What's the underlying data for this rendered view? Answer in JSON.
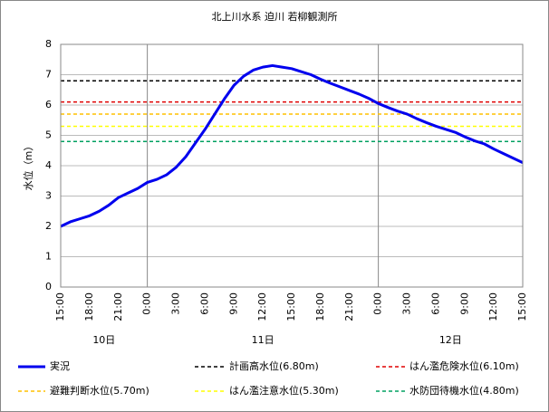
{
  "chart_data": {
    "type": "line",
    "title": "北上川水系 迫川 若柳観測所",
    "y_label": "水位（m）",
    "categories": [
      "15:00",
      null,
      null,
      "18:00",
      null,
      null,
      "21:00",
      null,
      null,
      "0:00",
      null,
      null,
      "3:00",
      null,
      null,
      "6:00",
      null,
      null,
      "9:00",
      null,
      null,
      "12:00",
      null,
      null,
      "15:00",
      null,
      null,
      "18:00",
      null,
      null,
      "21:00",
      null,
      null,
      "0:00",
      null,
      null,
      "3:00",
      null,
      null,
      "6:00",
      null,
      null,
      "9:00",
      null,
      null,
      "12:00",
      null,
      null,
      "15:00"
    ],
    "days": [
      "10日",
      "11日",
      "12日"
    ],
    "series": [
      {
        "name": "実況",
        "color": "#0000ee",
        "values": [
          2.0,
          2.15,
          2.25,
          2.35,
          2.5,
          2.7,
          2.95,
          3.1,
          3.25,
          3.45,
          3.55,
          3.7,
          3.95,
          4.3,
          4.75,
          5.2,
          5.7,
          6.2,
          6.65,
          6.95,
          7.15,
          7.25,
          7.3,
          7.25,
          7.2,
          7.1,
          7.0,
          6.85,
          6.72,
          6.6,
          6.48,
          6.36,
          6.22,
          6.05,
          5.92,
          5.8,
          5.7,
          5.55,
          5.42,
          5.3,
          5.2,
          5.1,
          4.95,
          4.82,
          4.72,
          4.55,
          4.4,
          4.25,
          4.1
        ]
      }
    ],
    "reference_lines": [
      {
        "name": "計画高水位(6.80m)",
        "value": 6.8,
        "color": "#000000"
      },
      {
        "name": "はん濫危険水位(6.10m)",
        "value": 6.1,
        "color": "#e00000"
      },
      {
        "name": "避難判断水位(5.70m)",
        "value": 5.7,
        "color": "#ffc000"
      },
      {
        "name": "はん濫注意水位(5.30m)",
        "value": 5.3,
        "color": "#ffff00"
      },
      {
        "name": "水防団待機水位(4.80m)",
        "value": 4.8,
        "color": "#00a060"
      }
    ],
    "ylim": [
      0,
      8
    ],
    "yticks": [
      0,
      1,
      2,
      3,
      4,
      5,
      6,
      7,
      8
    ],
    "grid": true
  }
}
